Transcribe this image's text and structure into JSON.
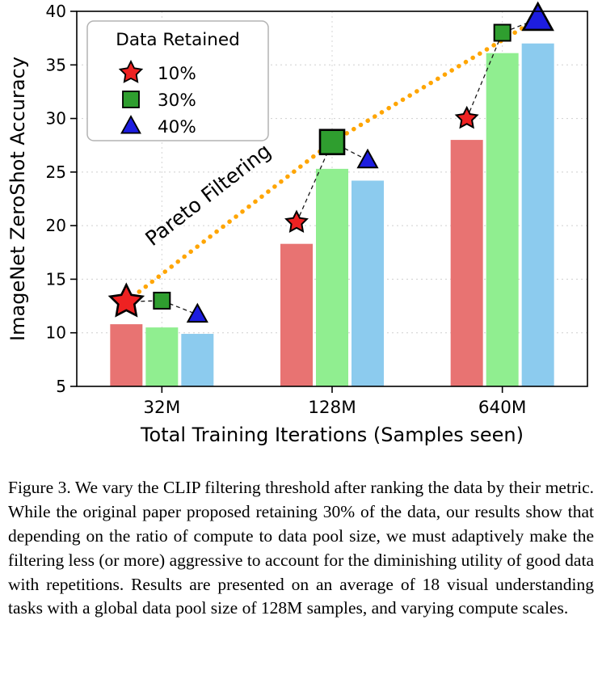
{
  "chart_data": {
    "type": "bar",
    "title": "",
    "xlabel": "Total Training Iterations (Samples seen)",
    "ylabel": "ImageNet ZeroShot Accuracy",
    "ylim": [
      5,
      40
    ],
    "yticks": [
      5,
      10,
      15,
      20,
      25,
      30,
      35,
      40
    ],
    "categories": [
      "32M",
      "128M",
      "640M"
    ],
    "grid": true,
    "legend": {
      "title": "Data Retained",
      "position": "upper left",
      "entries": [
        "10%",
        "30%",
        "40%"
      ]
    },
    "series": [
      {
        "name": "10%",
        "marker": "star",
        "bar_color": "#e87372",
        "marker_color": "#ee2222",
        "bar_values": [
          10.8,
          18.3,
          28.0
        ],
        "marker_values": [
          12.9,
          20.3,
          30.0
        ]
      },
      {
        "name": "30%",
        "marker": "square",
        "bar_color": "#90ee90",
        "marker_color": "#2f9e2f",
        "bar_values": [
          10.5,
          25.3,
          36.1
        ],
        "marker_values": [
          13.0,
          27.8,
          38.0
        ]
      },
      {
        "name": "40%",
        "marker": "triangle",
        "bar_color": "#8ccbee",
        "marker_color": "#1d1de0",
        "bar_values": [
          9.9,
          24.2,
          37.0
        ],
        "marker_values": [
          11.7,
          26.1,
          39.3
        ]
      }
    ],
    "pareto_line": {
      "label": "Pareto Filtering",
      "color": "#ffa500",
      "points": [
        {
          "category": "32M",
          "series": "10%"
        },
        {
          "category": "128M",
          "series": "30%"
        },
        {
          "category": "640M",
          "series": "40%"
        }
      ]
    }
  },
  "caption": {
    "text": "Figure 3.  We vary the CLIP filtering threshold after ranking the data by their metric. While the original paper proposed retaining 30% of the data, our results show that depending on the ratio of compute to data pool size, we must adaptively make the filtering less (or more) aggressive to account for the diminishing utility of good data with repetitions. Results are presented on an average of 18 visual understanding tasks with a global data pool size of 128M samples, and varying compute scales."
  }
}
